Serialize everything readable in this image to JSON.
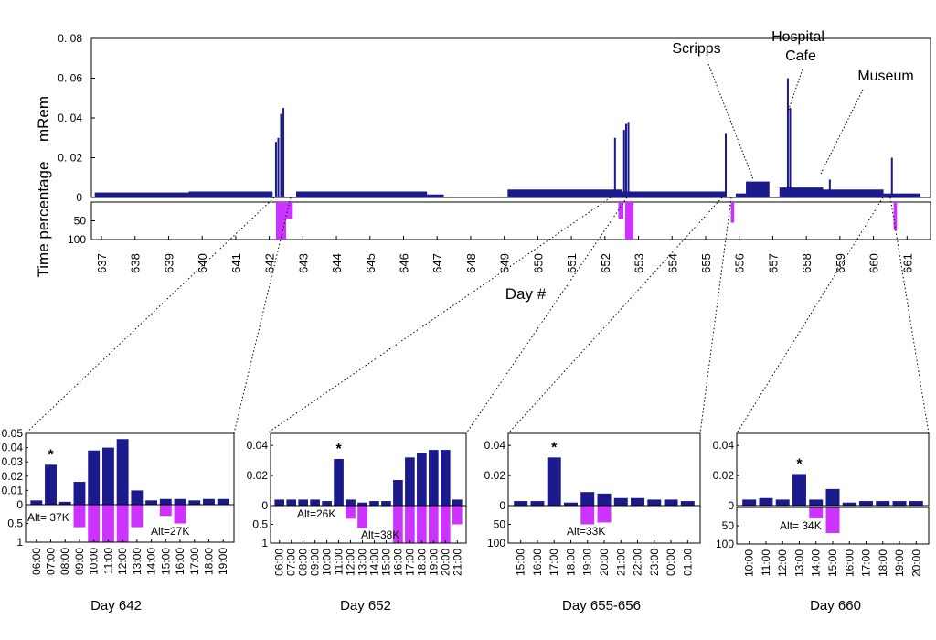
{
  "colors": {
    "top_series": "#1a1a8c",
    "bottom_series": "#cc33ff",
    "axis": "#000000"
  },
  "chart_data": [
    {
      "id": "overview",
      "type": "bar",
      "xlabel": "Day #",
      "top_ylabel": "mRem",
      "bottom_ylabel": "Time percentage",
      "top_ylim": [
        0,
        0.08
      ],
      "top_yticks": [
        "0. 08",
        "0. 06",
        "0. 04",
        "0. 02",
        "0"
      ],
      "top_ytick_values": [
        0.08,
        0.06,
        0.04,
        0.02,
        0
      ],
      "bottom_ylim": [
        0,
        100
      ],
      "bottom_yticks": [
        "50",
        "100"
      ],
      "bottom_ytick_values": [
        50,
        100
      ],
      "xlim": [
        636.7,
        661.7
      ],
      "xticks": [
        "637",
        "638",
        "639",
        "640",
        "641",
        "642",
        "643",
        "644",
        "645",
        "646",
        "647",
        "648",
        "649",
        "650",
        "651",
        "652",
        "653",
        "654",
        "655",
        "656",
        "657",
        "658",
        "659",
        "660",
        "661"
      ],
      "dose_segments": [
        {
          "x0": 636.8,
          "x1": 639.6,
          "value": 0.0025
        },
        {
          "x0": 639.6,
          "x1": 642.1,
          "value": 0.003
        },
        {
          "x0": 642.8,
          "x1": 646.7,
          "value": 0.003
        },
        {
          "x0": 646.7,
          "x1": 647.2,
          "value": 0.0015
        },
        {
          "x0": 649.1,
          "x1": 652.5,
          "value": 0.004
        },
        {
          "x0": 652.5,
          "x1": 655.6,
          "value": 0.003
        },
        {
          "x0": 655.9,
          "x1": 656.2,
          "value": 0.002
        },
        {
          "x0": 656.2,
          "x1": 656.9,
          "value": 0.008
        },
        {
          "x0": 657.2,
          "x1": 658.5,
          "value": 0.005
        },
        {
          "x0": 658.5,
          "x1": 660.3,
          "value": 0.004
        },
        {
          "x0": 660.3,
          "x1": 661.4,
          "value": 0.002
        }
      ],
      "dose_spikes": [
        {
          "x": 642.2,
          "value": 0.028
        },
        {
          "x": 642.27,
          "value": 0.03
        },
        {
          "x": 642.35,
          "value": 0.042
        },
        {
          "x": 642.42,
          "value": 0.045
        },
        {
          "x": 652.3,
          "value": 0.03
        },
        {
          "x": 652.57,
          "value": 0.034
        },
        {
          "x": 652.63,
          "value": 0.037
        },
        {
          "x": 652.7,
          "value": 0.038
        },
        {
          "x": 655.6,
          "value": 0.032
        },
        {
          "x": 657.45,
          "value": 0.06
        },
        {
          "x": 657.52,
          "value": 0.045
        },
        {
          "x": 658.7,
          "value": 0.009
        },
        {
          "x": 660.55,
          "value": 0.02
        }
      ],
      "altitude_time_bars": [
        {
          "x0": 642.2,
          "x1": 642.5,
          "value": 100
        },
        {
          "x0": 642.5,
          "x1": 642.7,
          "value": 45
        },
        {
          "x0": 652.4,
          "x1": 652.55,
          "value": 45
        },
        {
          "x0": 652.6,
          "x1": 652.85,
          "value": 100
        },
        {
          "x0": 655.75,
          "x1": 655.85,
          "value": 55
        },
        {
          "x0": 660.6,
          "x1": 660.7,
          "value": 75
        }
      ],
      "annotations": [
        "Scripps",
        "Hospital",
        "Cafe",
        "Museum"
      ]
    },
    {
      "id": "day642",
      "type": "bar",
      "title": "Day 642",
      "categories": [
        "06:00",
        "07:00",
        "08:00",
        "09:00",
        "10:00",
        "11:00",
        "12:00",
        "13:00",
        "14:00",
        "15:00",
        "16:00",
        "17:00",
        "18:00",
        "19:00"
      ],
      "top_values": [
        0.003,
        0.028,
        0.002,
        0.016,
        0.038,
        0.04,
        0.046,
        0.01,
        0.003,
        0.004,
        0.004,
        0.003,
        0.004,
        0.004
      ],
      "bottom_values": [
        0,
        0,
        0,
        0.6,
        1.0,
        1.0,
        1.0,
        0.6,
        0,
        0.3,
        0.5,
        0,
        0,
        0
      ],
      "top_ylim": [
        0,
        0.05
      ],
      "top_yticks": [
        "0.05",
        "0.04",
        "0.03",
        "0.02",
        "0.01",
        "0"
      ],
      "top_ytick_values": [
        0.05,
        0.04,
        0.03,
        0.02,
        0.01,
        0
      ],
      "bottom_ylim": [
        0,
        1
      ],
      "bottom_yticks": [
        "0.5",
        "1"
      ],
      "bottom_ytick_values": [
        0.5,
        1
      ],
      "star_index": 1,
      "star_label": "*",
      "alt_labels": [
        "Alt= 37K",
        "Alt=27K"
      ]
    },
    {
      "id": "day652",
      "type": "bar",
      "title": "Day 652",
      "categories": [
        "06:00",
        "07:00",
        "08:00",
        "09:00",
        "10:00",
        "11:00",
        "12:00",
        "13:00",
        "14:00",
        "15:00",
        "16:00",
        "17:00",
        "18:00",
        "19:00",
        "20:00",
        "21:00"
      ],
      "top_values": [
        0.004,
        0.004,
        0.004,
        0.004,
        0.003,
        0.031,
        0.004,
        0.002,
        0.003,
        0.003,
        0.017,
        0.032,
        0.035,
        0.037,
        0.037,
        0.004
      ],
      "bottom_values": [
        0,
        0,
        0,
        0,
        0,
        0,
        0.35,
        0.6,
        0,
        0,
        1.0,
        1.0,
        1.0,
        1.0,
        1.0,
        0.5
      ],
      "top_ylim": [
        0,
        0.048
      ],
      "top_yticks": [
        "0.04",
        "0.02",
        "0"
      ],
      "top_ytick_values": [
        0.04,
        0.02,
        0
      ],
      "bottom_ylim": [
        0,
        1
      ],
      "bottom_yticks": [
        "0.5",
        "1"
      ],
      "bottom_ytick_values": [
        0.5,
        1
      ],
      "star_index": 5,
      "star_label": "*",
      "alt_labels": [
        "Alt=26K",
        "Alt=38K"
      ]
    },
    {
      "id": "day655",
      "type": "bar",
      "title": "Day 655-656",
      "categories": [
        "15:00",
        "16:00",
        "17:00",
        "18:00",
        "19:00",
        "20:00",
        "21:00",
        "22:00",
        "23:00",
        "00:00",
        "01:00"
      ],
      "top_values": [
        0.003,
        0.003,
        0.032,
        0.002,
        0.009,
        0.008,
        0.005,
        0.005,
        0.004,
        0.004,
        0.003
      ],
      "bottom_values": [
        0,
        0,
        0,
        0,
        50,
        45,
        0,
        0,
        0,
        0,
        0
      ],
      "top_ylim": [
        0,
        0.048
      ],
      "top_yticks": [
        "0.04",
        "0.02",
        "0"
      ],
      "top_ytick_values": [
        0.04,
        0.02,
        0
      ],
      "bottom_ylim": [
        0,
        100
      ],
      "bottom_yticks": [
        "50",
        "100"
      ],
      "bottom_ytick_values": [
        50,
        100
      ],
      "star_index": 2,
      "star_label": "*",
      "alt_labels": [
        "Alt=33K"
      ]
    },
    {
      "id": "day660",
      "type": "bar",
      "title": "Day 660",
      "categories": [
        "10:00",
        "11:00",
        "12:00",
        "13:00",
        "14:00",
        "15:00",
        "16:00",
        "17:00",
        "18:00",
        "19:00",
        "20:00"
      ],
      "top_values": [
        0.004,
        0.005,
        0.004,
        0.021,
        0.004,
        0.011,
        0.002,
        0.003,
        0.003,
        0.003,
        0.003
      ],
      "bottom_values": [
        0,
        0,
        0,
        0,
        30,
        70,
        0,
        0,
        0,
        0,
        0
      ],
      "top_ylim": [
        0,
        0.048
      ],
      "top_yticks": [
        "0.04",
        "0.02",
        "0"
      ],
      "top_ytick_values": [
        0.04,
        0.02,
        0
      ],
      "bottom_ylim": [
        0,
        100
      ],
      "bottom_yticks": [
        "50",
        "100"
      ],
      "bottom_ytick_values": [
        50,
        100
      ],
      "star_index": 3,
      "star_label": "*",
      "alt_labels": [
        "Alt= 34K"
      ]
    }
  ]
}
